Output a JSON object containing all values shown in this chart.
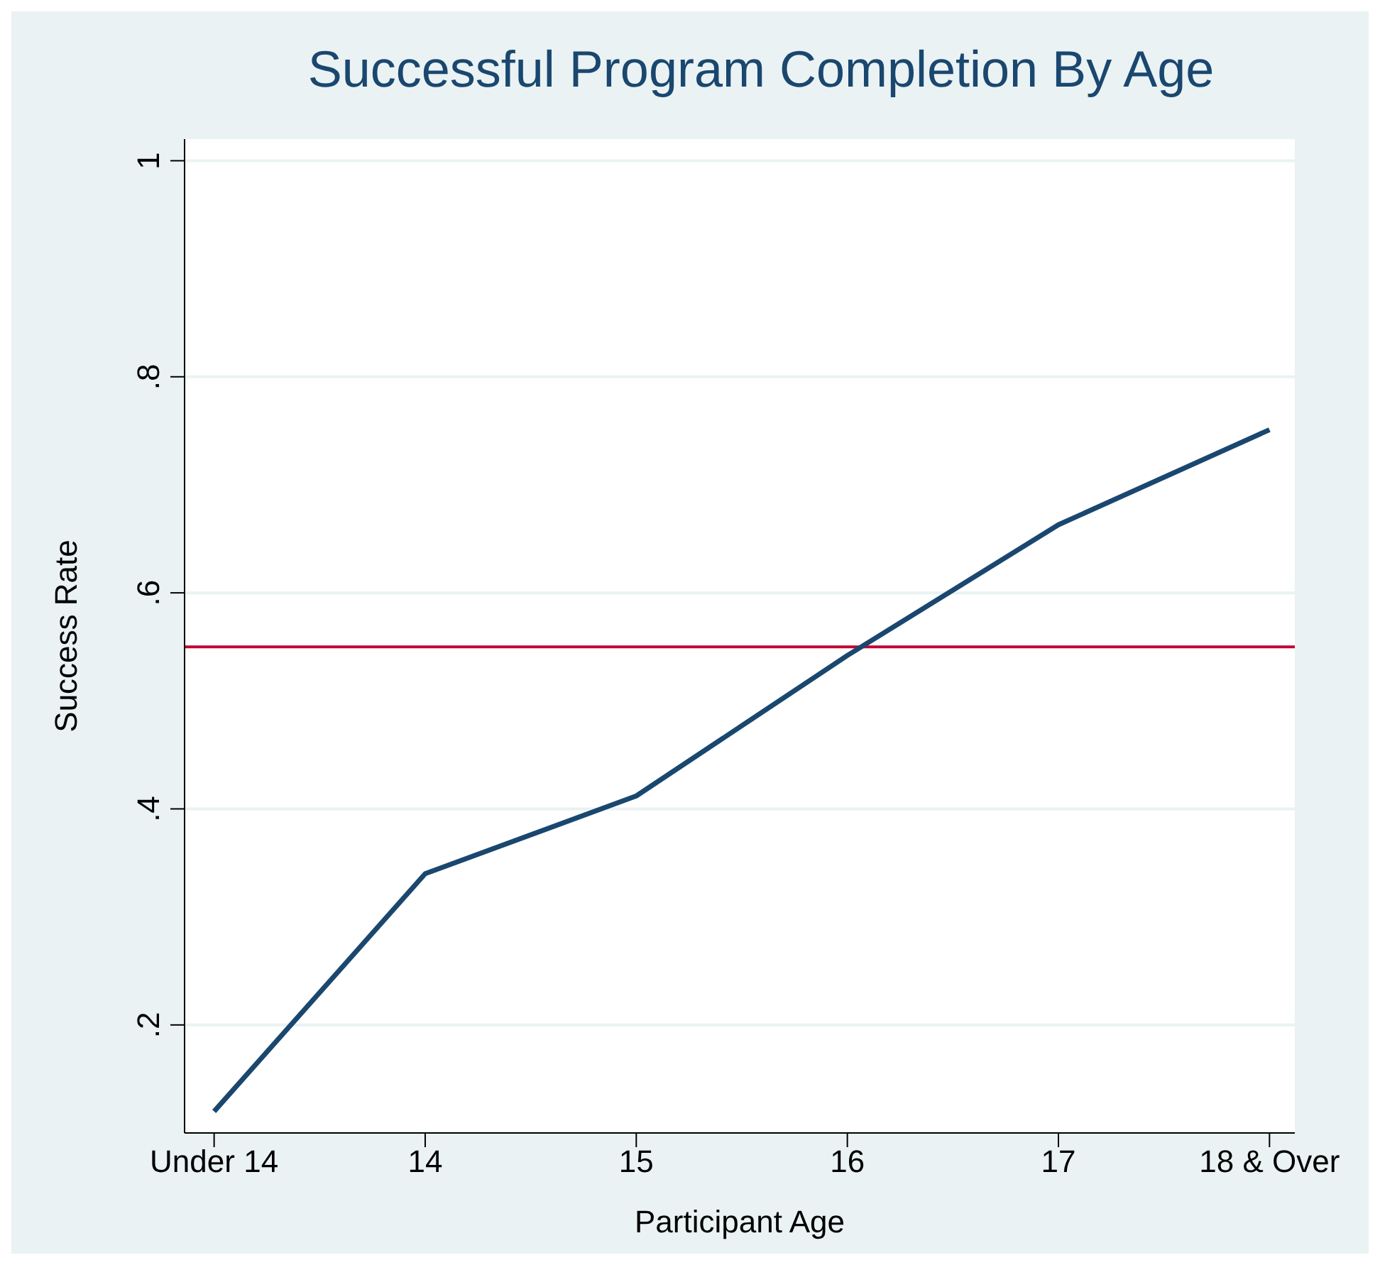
{
  "chart_data": {
    "type": "line",
    "title": "Successful Program Completion By Age",
    "xlabel": "Participant Age",
    "ylabel": "Success Rate",
    "categories": [
      "Under 14",
      "14",
      "15",
      "16",
      "17",
      "18 & Over"
    ],
    "series": [
      {
        "color": "#1a476f",
        "values": [
          0.12,
          0.34,
          0.412,
          0.542,
          0.663,
          0.751
        ]
      }
    ],
    "ylim": [
      0.1,
      1.02
    ],
    "yticks": [
      {
        "value": 0.2,
        "label": ".2"
      },
      {
        "value": 0.4,
        "label": ".4"
      },
      {
        "value": 0.6,
        "label": ".6"
      },
      {
        "value": 0.8,
        "label": ".8"
      },
      1
    ],
    "ref_lines": [
      {
        "axis": "y",
        "value": 0.55,
        "color": "#c10534"
      }
    ],
    "grid": "y",
    "marker": "none",
    "line_style": "solid"
  }
}
